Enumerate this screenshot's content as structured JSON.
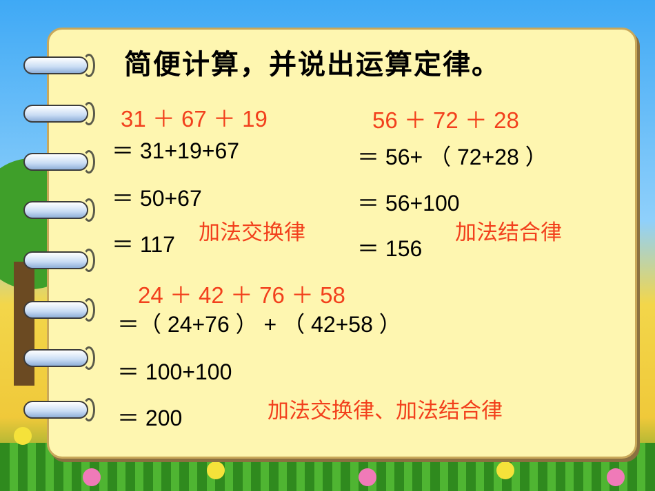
{
  "title": "简便计算，并说出运算定律。",
  "problems": [
    {
      "expression": "31 ＋ 67 ＋ 19",
      "steps": [
        "＝ 31+19+67",
        "＝ 50+67",
        "＝ 117"
      ],
      "law": "加法交换律"
    },
    {
      "expression": "56 ＋ 72 ＋ 28",
      "steps": [
        "＝ 56+ （ 72+28 ）",
        "＝ 56+100",
        "＝ 156"
      ],
      "law": "加法结合律"
    },
    {
      "expression": "24 ＋ 42 ＋ 76 ＋ 58",
      "steps": [
        "＝（ 24+76 ） + （ 42+58 ）",
        "＝ 100+100",
        "＝ 200"
      ],
      "law": "加法交换律、加法结合律"
    }
  ],
  "colors": {
    "expression": "#f2401c",
    "law": "#f2401c",
    "steps": "#000000",
    "paper": "#fef6b0"
  }
}
